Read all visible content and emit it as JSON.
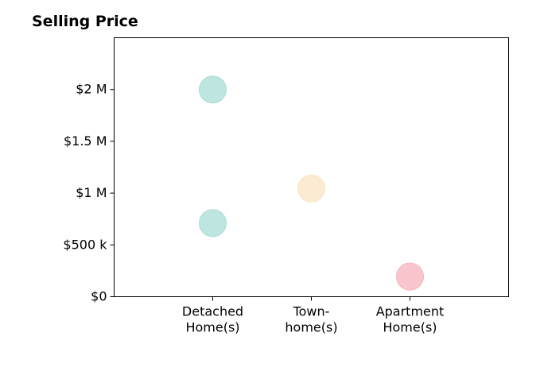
{
  "chart_data": {
    "type": "scatter",
    "title": "Selling Price",
    "xlabel": "",
    "ylabel": "",
    "categories": [
      "Detached\nHome(s)",
      "Town-\nhome(s)",
      "Apartment\nHome(s)"
    ],
    "ylim": [
      0,
      2500000
    ],
    "yticks": [
      {
        "value": 0,
        "label": "$0"
      },
      {
        "value": 500000,
        "label": "$500 k"
      },
      {
        "value": 1000000,
        "label": "$1 M"
      },
      {
        "value": 1500000,
        "label": "$1.5 M"
      },
      {
        "value": 2000000,
        "label": "$2 M"
      }
    ],
    "points": [
      {
        "category": "Detached\nHome(s)",
        "value": 2000000,
        "color": "#a8dcd6"
      },
      {
        "category": "Detached\nHome(s)",
        "value": 710000,
        "color": "#a8dcd6"
      },
      {
        "category": "Town-\nhome(s)",
        "value": 1045000,
        "color": "#f8e6c3"
      },
      {
        "category": "Apartment\nHome(s)",
        "value": 195000,
        "color": "#f6b3b9"
      }
    ],
    "grid": false,
    "legend": "none"
  }
}
